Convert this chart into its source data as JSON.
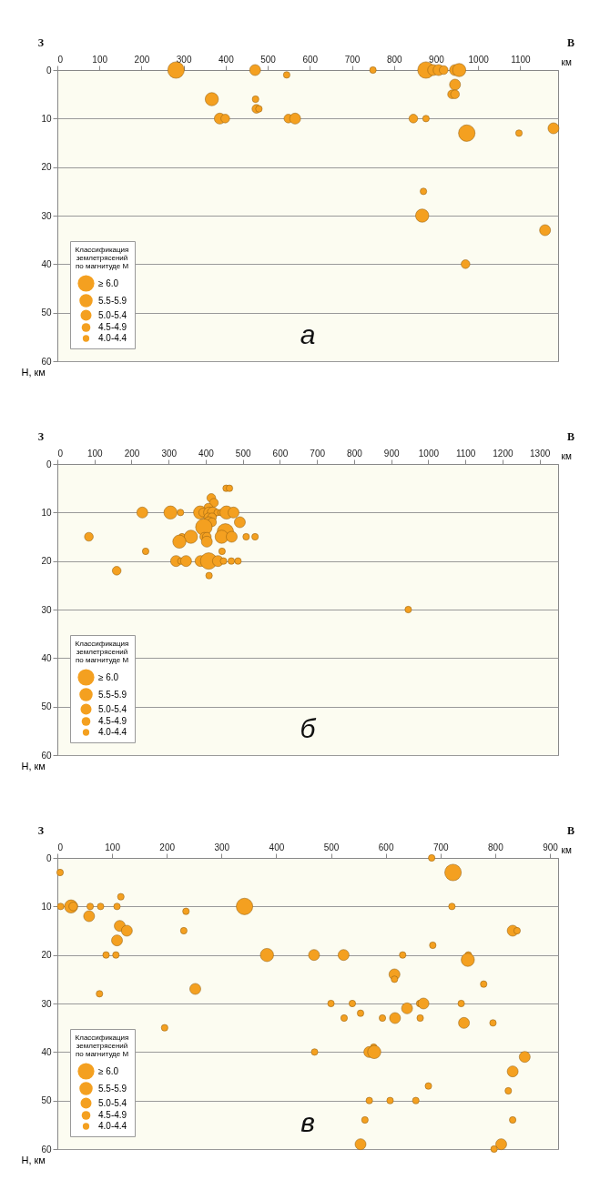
{
  "chart_data": [
    {
      "type": "bubble",
      "xlabel": "км",
      "ylabel": "Н, км",
      "legend_title": "Классификация\nземлетрясений\nпо магнитуде М",
      "annotations": [
        "З",
        "В",
        "а"
      ],
      "x": [
        282,
        470,
        545,
        750,
        876,
        893,
        906,
        918,
        945,
        955,
        945,
        938,
        945,
        367,
        471,
        473,
        479,
        386,
        399,
        549,
        565,
        846,
        876,
        973,
        1097,
        1179,
        870,
        867,
        1159,
        970
      ],
      "values": [
        0,
        0,
        1,
        0,
        0,
        0,
        0,
        0,
        0,
        0,
        3,
        5,
        5,
        6,
        6,
        8,
        8,
        10,
        10,
        10,
        10,
        10,
        10,
        13,
        13,
        12,
        25,
        30,
        33,
        40
      ],
      "sizes": [
        1,
        0.44,
        0.16,
        0.16,
        1,
        0.44,
        0.44,
        0.28,
        0.44,
        0.64,
        0.44,
        0.28,
        0.28,
        0.64,
        0.16,
        0.28,
        0.16,
        0.44,
        0.28,
        0.28,
        0.44,
        0.28,
        0.16,
        1,
        0.16,
        0.44,
        0.16,
        0.64,
        0.44,
        0.28
      ],
      "color": "#f4a020",
      "size_legend": [
        {
          "value": 1,
          "label": "≥ 6.0"
        },
        {
          "value": 0.64,
          "label": "5.5-5.9"
        },
        {
          "value": 0.44,
          "label": "5.0-5.4"
        },
        {
          "value": 0.28,
          "label": "4.5-4.9"
        },
        {
          "value": 0.16,
          "label": "4.0-4.4"
        }
      ],
      "xlim": [
        0,
        1190
      ],
      "xticks": [
        0,
        100,
        200,
        300,
        400,
        500,
        600,
        700,
        800,
        900,
        1000,
        1100
      ],
      "ylim": [
        60,
        0
      ],
      "yticks": [
        0,
        10,
        20,
        30,
        40,
        50,
        60
      ],
      "grid": "y"
    },
    {
      "type": "bubble",
      "xlabel": "км",
      "ylabel": "Н, км",
      "legend_title": "Классификация\nземлетрясений\nпо магнитуде М",
      "annotations": [
        "З",
        "В",
        "б"
      ],
      "x": [
        455,
        464,
        415,
        422,
        407,
        229,
        305,
        332,
        385,
        393,
        409,
        419,
        431,
        441,
        456,
        475,
        407,
        417,
        408,
        417,
        492,
        395,
        453,
        85,
        336,
        360,
        396,
        403,
        443,
        470,
        509,
        533,
        329,
        403,
        238,
        444,
        160,
        320,
        333,
        347,
        386,
        408,
        433,
        448,
        469,
        487,
        409,
        946
      ],
      "values": [
        5,
        5,
        7,
        8,
        9,
        10,
        10,
        10,
        10,
        10,
        10,
        10,
        10,
        10,
        10,
        10,
        11,
        11,
        12,
        12,
        12,
        13,
        14,
        15,
        15,
        15,
        15,
        15,
        15,
        15,
        15,
        15,
        16,
        16,
        18,
        18,
        22,
        20,
        20,
        20,
        20,
        20,
        20,
        20,
        20,
        20,
        23,
        30
      ],
      "sizes": [
        0.16,
        0.16,
        0.28,
        0.28,
        0.28,
        0.44,
        0.64,
        0.16,
        0.64,
        0.28,
        0.44,
        0.44,
        0.16,
        0.16,
        0.64,
        0.44,
        0.28,
        0.28,
        0.44,
        0.28,
        0.44,
        1,
        1,
        0.28,
        0.16,
        0.64,
        0.28,
        0.28,
        0.64,
        0.44,
        0.16,
        0.16,
        0.64,
        0.44,
        0.16,
        0.16,
        0.28,
        0.44,
        0.16,
        0.44,
        0.44,
        1,
        0.44,
        0.16,
        0.16,
        0.16,
        0.16,
        0.16
      ],
      "color": "#f4a020",
      "size_legend": [
        {
          "value": 1,
          "label": "≥ 6.0"
        },
        {
          "value": 0.64,
          "label": "5.5-5.9"
        },
        {
          "value": 0.44,
          "label": "5.0-5.4"
        },
        {
          "value": 0.28,
          "label": "4.5-4.9"
        },
        {
          "value": 0.16,
          "label": "4.0-4.4"
        }
      ],
      "xlim": [
        0,
        1350
      ],
      "xticks": [
        0,
        100,
        200,
        300,
        400,
        500,
        600,
        700,
        800,
        900,
        1000,
        1100,
        1200,
        1300
      ],
      "ylim": [
        60,
        0
      ],
      "yticks": [
        0,
        10,
        20,
        30,
        40,
        50,
        60
      ],
      "grid": "y"
    },
    {
      "type": "bubble",
      "xlabel": "км",
      "ylabel": "Н, км",
      "legend_title": "Классификация\nземлетрясений\nпо магнитуде М",
      "annotations": [
        "З",
        "В",
        "в"
      ],
      "x": [
        684,
        723,
        5,
        116,
        6,
        25,
        29,
        60,
        79,
        109,
        342,
        721,
        235,
        58,
        114,
        127,
        231,
        832,
        840,
        109,
        686,
        89,
        107,
        383,
        469,
        523,
        631,
        751,
        750,
        616,
        616,
        779,
        252,
        77,
        196,
        500,
        539,
        662,
        669,
        738,
        639,
        554,
        524,
        594,
        617,
        663,
        743,
        796,
        470,
        578,
        570,
        579,
        854,
        832,
        678,
        824,
        570,
        608,
        655,
        562,
        832,
        554,
        811,
        798
      ],
      "values": [
        0,
        3,
        3,
        8,
        10,
        10,
        10,
        10,
        10,
        10,
        10,
        10,
        11,
        12,
        14,
        15,
        15,
        15,
        15,
        17,
        18,
        20,
        20,
        20,
        20,
        20,
        20,
        20,
        21,
        24,
        25,
        26,
        27,
        28,
        35,
        30,
        30,
        30,
        30,
        30,
        31,
        32,
        33,
        33,
        33,
        33,
        34,
        34,
        40,
        39,
        40,
        40,
        41,
        44,
        47,
        48,
        50,
        50,
        50,
        54,
        54,
        59,
        59,
        60
      ],
      "sizes": [
        0.16,
        1,
        0.16,
        0.16,
        0.16,
        0.64,
        0.28,
        0.16,
        0.16,
        0.16,
        1,
        0.16,
        0.16,
        0.44,
        0.44,
        0.44,
        0.16,
        0.44,
        0.16,
        0.44,
        0.16,
        0.16,
        0.16,
        0.64,
        0.44,
        0.44,
        0.16,
        0.16,
        0.64,
        0.44,
        0.16,
        0.16,
        0.44,
        0.16,
        0.16,
        0.16,
        0.16,
        0.16,
        0.44,
        0.16,
        0.44,
        0.16,
        0.16,
        0.16,
        0.44,
        0.16,
        0.44,
        0.16,
        0.16,
        0.16,
        0.44,
        0.64,
        0.44,
        0.44,
        0.16,
        0.16,
        0.16,
        0.16,
        0.16,
        0.16,
        0.16,
        0.44,
        0.44,
        0.16
      ],
      "color": "#f4a020",
      "size_legend": [
        {
          "value": 1,
          "label": "≥ 6.0"
        },
        {
          "value": 0.64,
          "label": "5.5-5.9"
        },
        {
          "value": 0.44,
          "label": "5.0-5.4"
        },
        {
          "value": 0.28,
          "label": "4.5-4.9"
        },
        {
          "value": 0.16,
          "label": "4.0-4.4"
        }
      ],
      "xlim": [
        0,
        915
      ],
      "xticks": [
        0,
        100,
        200,
        300,
        400,
        500,
        600,
        700,
        800,
        900
      ],
      "ylim": [
        60,
        0
      ],
      "yticks": [
        0,
        10,
        20,
        30,
        40,
        50,
        60
      ],
      "grid": "y"
    }
  ]
}
